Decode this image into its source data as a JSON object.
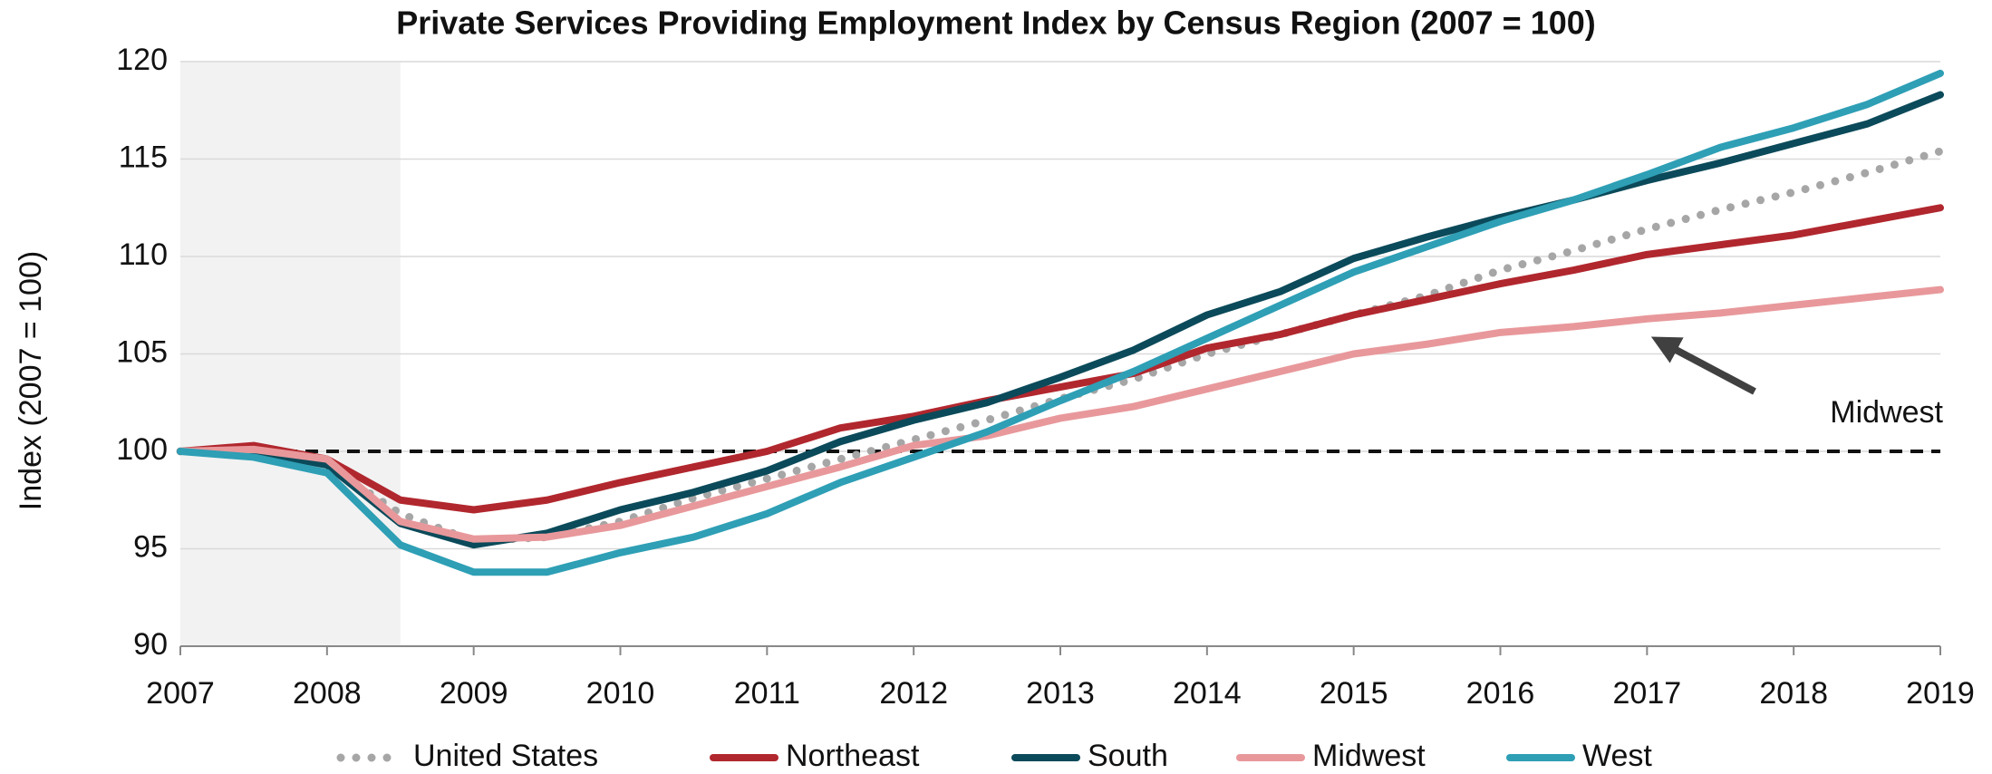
{
  "chart_data": {
    "type": "line",
    "title": "Private Services Providing Employment Index by Census Region (2007 = 100)",
    "y_label": "Index (2007 = 100)",
    "x": [
      2007,
      2007.5,
      2008,
      2008.5,
      2009,
      2009.5,
      2010,
      2010.5,
      2011,
      2011.5,
      2012,
      2012.5,
      2013,
      2013.5,
      2014,
      2014.5,
      2015,
      2015.5,
      2016,
      2016.5,
      2017,
      2017.5,
      2018,
      2018.5,
      2019
    ],
    "series": [
      {
        "name": "United States",
        "color": "#a6a6a6",
        "style": "dotted",
        "values": [
          100,
          100.2,
          99.3,
          96.8,
          95.4,
          95.6,
          96.4,
          97.6,
          98.6,
          99.6,
          100.6,
          101.6,
          102.7,
          103.7,
          105.0,
          106.0,
          107.0,
          108.0,
          109.3,
          110.3,
          111.4,
          112.4,
          113.3,
          114.3,
          115.4
        ]
      },
      {
        "name": "Northeast",
        "color": "#b1272e",
        "style": "solid",
        "values": [
          100,
          100.3,
          99.6,
          97.5,
          97.0,
          97.5,
          98.4,
          99.2,
          100.0,
          101.2,
          101.8,
          102.6,
          103.3,
          104.0,
          105.3,
          106.0,
          107.0,
          107.8,
          108.6,
          109.3,
          110.1,
          110.6,
          111.1,
          111.8,
          112.5
        ]
      },
      {
        "name": "South",
        "color": "#0b4a5a",
        "style": "solid",
        "values": [
          100,
          100.0,
          99.3,
          96.3,
          95.2,
          95.8,
          97.0,
          97.9,
          99.0,
          100.5,
          101.6,
          102.5,
          103.8,
          105.2,
          107.0,
          108.2,
          109.9,
          111.0,
          112.0,
          112.9,
          113.9,
          114.8,
          115.8,
          116.8,
          118.3
        ]
      },
      {
        "name": "Midwest",
        "color": "#e8989b",
        "style": "solid",
        "values": [
          100,
          100.1,
          99.6,
          96.4,
          95.5,
          95.6,
          96.2,
          97.2,
          98.2,
          99.2,
          100.3,
          100.8,
          101.7,
          102.3,
          103.2,
          104.1,
          105.0,
          105.5,
          106.1,
          106.4,
          106.8,
          107.1,
          107.5,
          107.9,
          108.3
        ]
      },
      {
        "name": "West",
        "color": "#2e9fb5",
        "style": "solid",
        "values": [
          100,
          99.7,
          98.9,
          95.2,
          93.8,
          93.8,
          94.8,
          95.6,
          96.8,
          98.4,
          99.7,
          101.0,
          102.6,
          104.1,
          105.8,
          107.5,
          109.2,
          110.5,
          111.8,
          112.9,
          114.2,
          115.6,
          116.6,
          117.8,
          119.4
        ]
      }
    ],
    "xlim": [
      2007,
      2019
    ],
    "xticks": [
      2007,
      2008,
      2009,
      2010,
      2011,
      2012,
      2013,
      2014,
      2015,
      2016,
      2017,
      2018,
      2019
    ],
    "ylim": [
      90,
      120
    ],
    "yticks": [
      90,
      95,
      100,
      105,
      110,
      115,
      120
    ],
    "grid": true,
    "reference_line": 100,
    "recession_shading": [
      2007,
      2008.5
    ],
    "annotation": "Midwest",
    "legend": "bottom"
  }
}
